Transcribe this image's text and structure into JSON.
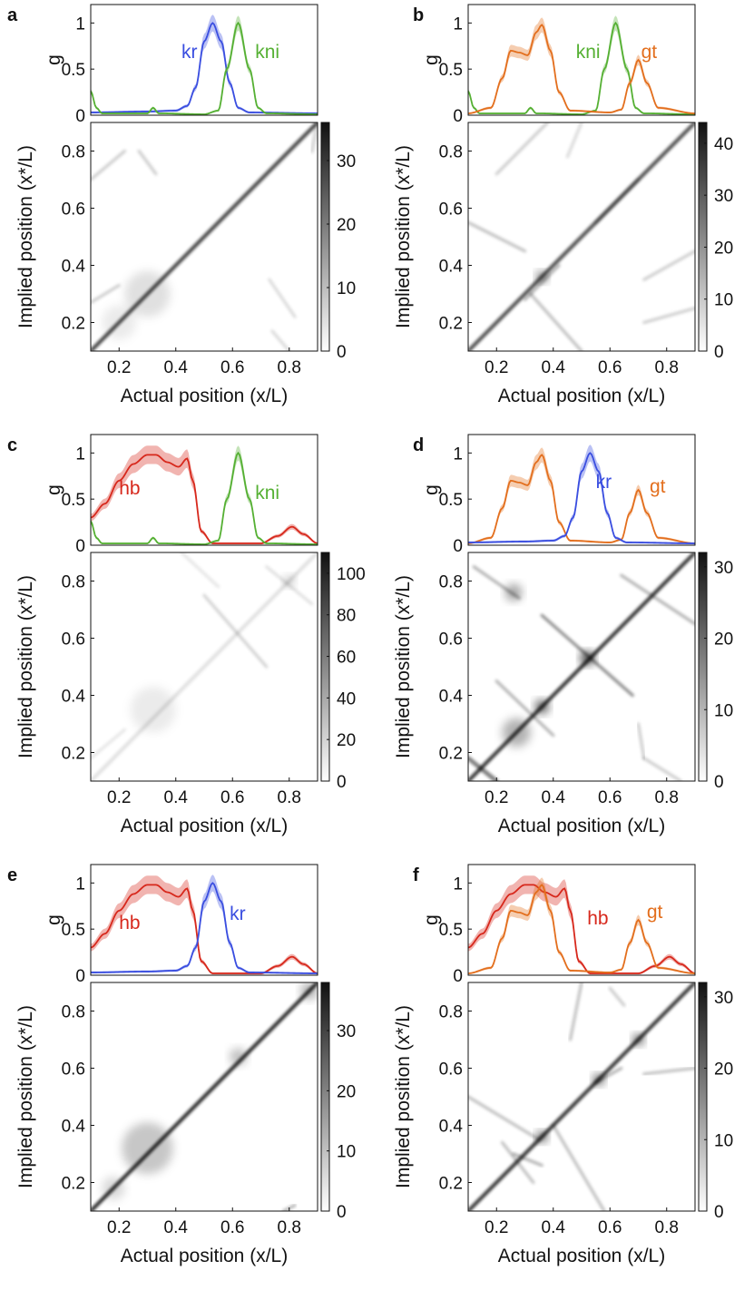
{
  "figure": {
    "panels": [
      "a",
      "b",
      "c",
      "d",
      "e",
      "f"
    ]
  },
  "colors": {
    "kr": "#3a4ee0",
    "kni": "#55b033",
    "gt": "#e36f1e",
    "hb": "#d7281c",
    "axis": "#111111"
  },
  "chart_data": [
    {
      "panel": "a",
      "type": "line",
      "genes": [
        "kr",
        "kni"
      ],
      "profile": {
        "ylabel": "g",
        "ylim": [
          0,
          1.2
        ],
        "yticks": [
          "0",
          "0.5",
          "1"
        ],
        "xlim": [
          0.1,
          0.9
        ]
      },
      "map": {
        "type": "heatmap",
        "xlabel": "Actual position (x/L)",
        "ylabel": "Implied position (x*/L)",
        "xticks": [
          "0.2",
          "0.4",
          "0.6",
          "0.8"
        ],
        "yticks": [
          "0.2",
          "0.4",
          "0.6",
          "0.8"
        ],
        "xlim": [
          0.1,
          0.9
        ],
        "ylim": [
          0.1,
          0.9
        ],
        "colorbar": {
          "max": 36,
          "ticks": [
            "0",
            "10",
            "20",
            "30"
          ]
        }
      }
    },
    {
      "panel": "b",
      "type": "line",
      "genes": [
        "kni",
        "gt"
      ],
      "profile": {
        "ylabel": "g",
        "ylim": [
          0,
          1.2
        ],
        "yticks": [
          "0",
          "0.5",
          "1"
        ],
        "xlim": [
          0.1,
          0.9
        ]
      },
      "map": {
        "type": "heatmap",
        "xlabel": "Actual position (x/L)",
        "ylabel": "Implied position (x*/L)",
        "xticks": [
          "0.2",
          "0.4",
          "0.6",
          "0.8"
        ],
        "yticks": [
          "0.2",
          "0.4",
          "0.6",
          "0.8"
        ],
        "xlim": [
          0.1,
          0.9
        ],
        "ylim": [
          0.1,
          0.9
        ],
        "colorbar": {
          "max": 44,
          "ticks": [
            "0",
            "10",
            "20",
            "30",
            "40"
          ]
        }
      }
    },
    {
      "panel": "c",
      "type": "line",
      "genes": [
        "hb",
        "kni"
      ],
      "profile": {
        "ylabel": "g",
        "ylim": [
          0,
          1.2
        ],
        "yticks": [
          "0",
          "0.5",
          "1"
        ],
        "xlim": [
          0.1,
          0.9
        ]
      },
      "map": {
        "type": "heatmap",
        "xlabel": "Actual position (x/L)",
        "ylabel": "Implied position (x*/L)",
        "xticks": [
          "0.2",
          "0.4",
          "0.6",
          "0.8"
        ],
        "yticks": [
          "0.2",
          "0.4",
          "0.6",
          "0.8"
        ],
        "xlim": [
          0.1,
          0.9
        ],
        "ylim": [
          0.1,
          0.9
        ],
        "colorbar": {
          "max": 110,
          "ticks": [
            "0",
            "20",
            "40",
            "60",
            "80",
            "100"
          ]
        }
      }
    },
    {
      "panel": "d",
      "type": "line",
      "genes": [
        "gt",
        "kr"
      ],
      "profile": {
        "ylabel": "g",
        "ylim": [
          0,
          1.2
        ],
        "yticks": [
          "0",
          "0.5",
          "1"
        ],
        "xlim": [
          0.1,
          0.9
        ]
      },
      "map": {
        "type": "heatmap",
        "xlabel": "Actual position (x/L)",
        "ylabel": "Implied position (x*/L)",
        "xticks": [
          "0.2",
          "0.4",
          "0.6",
          "0.8"
        ],
        "yticks": [
          "0.2",
          "0.4",
          "0.6",
          "0.8"
        ],
        "xlim": [
          0.1,
          0.9
        ],
        "ylim": [
          0.1,
          0.9
        ],
        "colorbar": {
          "max": 32,
          "ticks": [
            "0",
            "10",
            "20",
            "30"
          ]
        }
      }
    },
    {
      "panel": "e",
      "type": "line",
      "genes": [
        "hb",
        "kr"
      ],
      "profile": {
        "ylabel": "g",
        "ylim": [
          0,
          1.2
        ],
        "yticks": [
          "0",
          "0.5",
          "1"
        ],
        "xlim": [
          0.1,
          0.9
        ]
      },
      "map": {
        "type": "heatmap",
        "xlabel": "Actual position (x/L)",
        "ylabel": "Implied position (x*/L)",
        "xticks": [
          "0.2",
          "0.4",
          "0.6",
          "0.8"
        ],
        "yticks": [
          "0.2",
          "0.4",
          "0.6",
          "0.8"
        ],
        "xlim": [
          0.1,
          0.9
        ],
        "ylim": [
          0.1,
          0.9
        ],
        "colorbar": {
          "max": 38,
          "ticks": [
            "0",
            "10",
            "20",
            "30"
          ]
        }
      }
    },
    {
      "panel": "f",
      "type": "line",
      "genes": [
        "hb",
        "gt"
      ],
      "profile": {
        "ylabel": "g",
        "ylim": [
          0,
          1.2
        ],
        "yticks": [
          "0",
          "0.5",
          "1"
        ],
        "xlim": [
          0.1,
          0.9
        ]
      },
      "map": {
        "type": "heatmap",
        "xlabel": "Actual position (x/L)",
        "ylabel": "Implied position (x*/L)",
        "xticks": [
          "0.2",
          "0.4",
          "0.6",
          "0.8"
        ],
        "yticks": [
          "0.2",
          "0.4",
          "0.6",
          "0.8"
        ],
        "xlim": [
          0.1,
          0.9
        ],
        "ylim": [
          0.1,
          0.9
        ],
        "colorbar": {
          "max": 32,
          "ticks": [
            "0",
            "10",
            "20",
            "30"
          ]
        }
      }
    }
  ],
  "gene_profiles": {
    "kr": {
      "label": "kr",
      "points": [
        [
          0.1,
          0.03
        ],
        [
          0.3,
          0.04
        ],
        [
          0.4,
          0.05
        ],
        [
          0.44,
          0.1
        ],
        [
          0.47,
          0.3
        ],
        [
          0.5,
          0.8
        ],
        [
          0.53,
          1.0
        ],
        [
          0.56,
          0.8
        ],
        [
          0.59,
          0.35
        ],
        [
          0.62,
          0.08
        ],
        [
          0.66,
          0.03
        ],
        [
          0.9,
          0.02
        ]
      ],
      "band": 0.09
    },
    "kni": {
      "label": "kni",
      "points": [
        [
          0.1,
          0.26
        ],
        [
          0.12,
          0.08
        ],
        [
          0.14,
          0.02
        ],
        [
          0.3,
          0.02
        ],
        [
          0.32,
          0.08
        ],
        [
          0.34,
          0.02
        ],
        [
          0.5,
          0.01
        ],
        [
          0.55,
          0.05
        ],
        [
          0.58,
          0.5
        ],
        [
          0.62,
          1.0
        ],
        [
          0.66,
          0.5
        ],
        [
          0.69,
          0.08
        ],
        [
          0.72,
          0.02
        ],
        [
          0.9,
          0.01
        ]
      ],
      "band": 0.08
    },
    "gt": {
      "label": "gt",
      "points": [
        [
          0.1,
          0.02
        ],
        [
          0.18,
          0.08
        ],
        [
          0.22,
          0.4
        ],
        [
          0.25,
          0.7
        ],
        [
          0.28,
          0.68
        ],
        [
          0.31,
          0.65
        ],
        [
          0.34,
          0.9
        ],
        [
          0.36,
          0.98
        ],
        [
          0.39,
          0.7
        ],
        [
          0.42,
          0.25
        ],
        [
          0.46,
          0.05
        ],
        [
          0.6,
          0.03
        ],
        [
          0.64,
          0.06
        ],
        [
          0.67,
          0.35
        ],
        [
          0.7,
          0.6
        ],
        [
          0.73,
          0.35
        ],
        [
          0.77,
          0.08
        ],
        [
          0.9,
          0.02
        ]
      ],
      "band": 0.08
    },
    "hb": {
      "label": "hb",
      "points": [
        [
          0.1,
          0.3
        ],
        [
          0.15,
          0.45
        ],
        [
          0.2,
          0.7
        ],
        [
          0.25,
          0.88
        ],
        [
          0.3,
          0.98
        ],
        [
          0.33,
          0.98
        ],
        [
          0.37,
          0.9
        ],
        [
          0.41,
          0.85
        ],
        [
          0.44,
          0.94
        ],
        [
          0.46,
          0.7
        ],
        [
          0.49,
          0.15
        ],
        [
          0.53,
          0.02
        ],
        [
          0.7,
          0.02
        ],
        [
          0.76,
          0.1
        ],
        [
          0.81,
          0.2
        ],
        [
          0.85,
          0.12
        ],
        [
          0.9,
          0.02
        ]
      ],
      "band": 0.1
    }
  }
}
